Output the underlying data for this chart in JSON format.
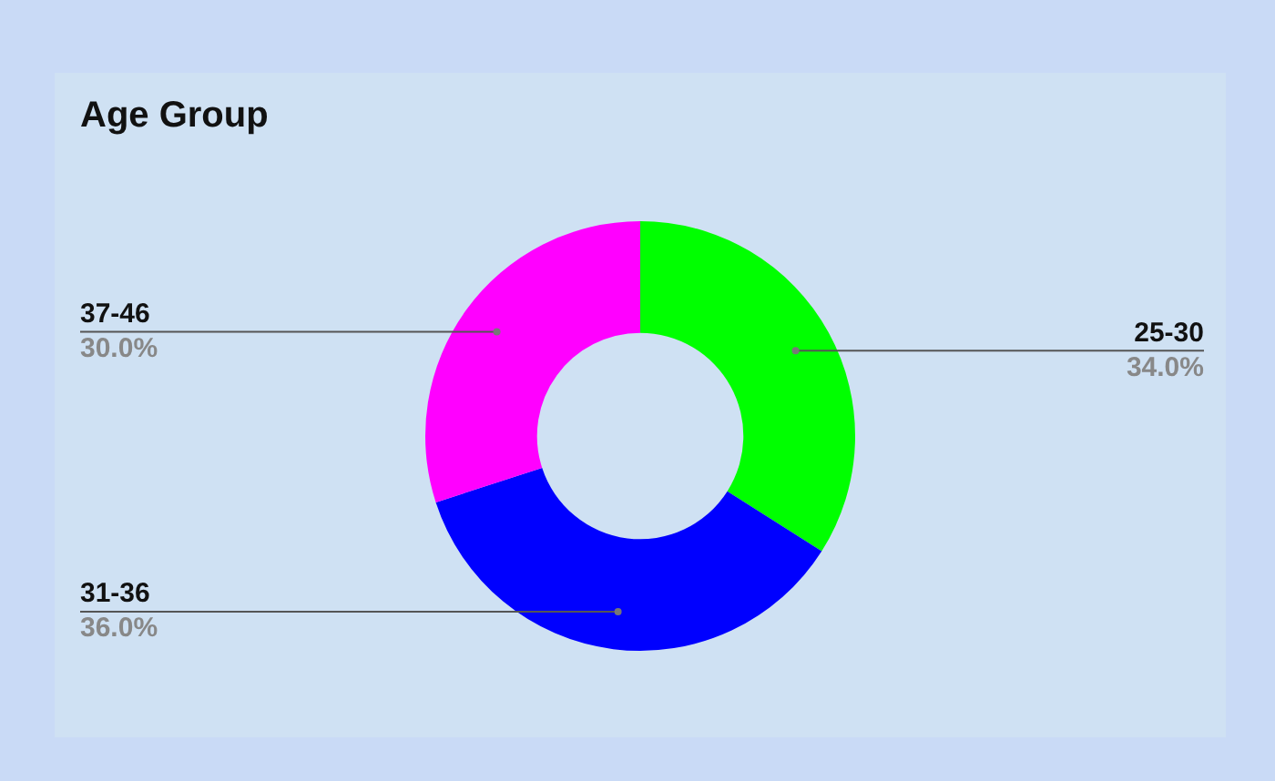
{
  "chart_data": {
    "type": "donut",
    "title": "Age Group",
    "categories": [
      "25-30",
      "31-36",
      "37-46"
    ],
    "values": [
      34.0,
      36.0,
      30.0
    ],
    "value_labels": [
      "34.0%",
      "36.0%",
      "30.0%"
    ],
    "colors": [
      "#00ff00",
      "#0000ff",
      "#ff00ff"
    ],
    "legend": false
  }
}
